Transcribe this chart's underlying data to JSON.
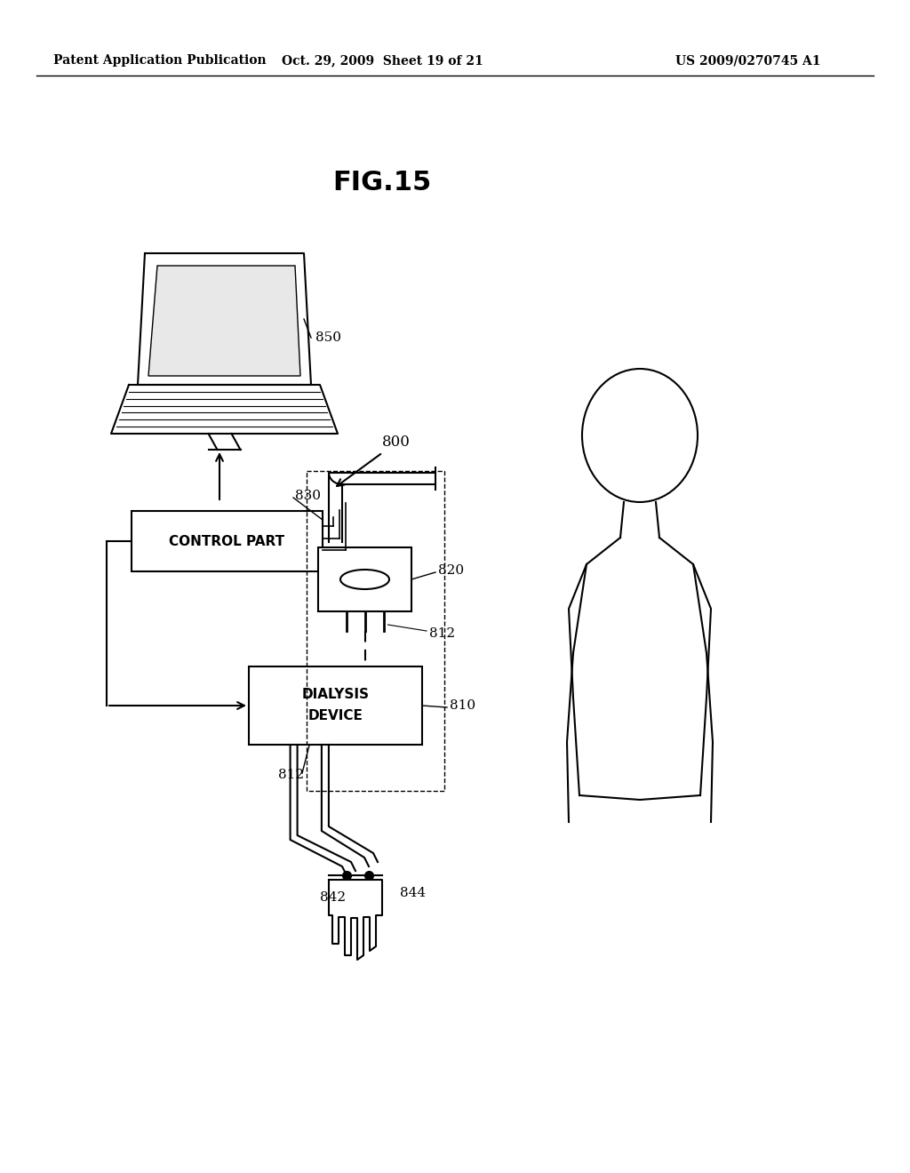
{
  "title": "FIG.15",
  "header_left": "Patent Application Publication",
  "header_mid": "Oct. 29, 2009  Sheet 19 of 21",
  "header_right": "US 2009/0270745 A1",
  "bg_color": "#ffffff"
}
